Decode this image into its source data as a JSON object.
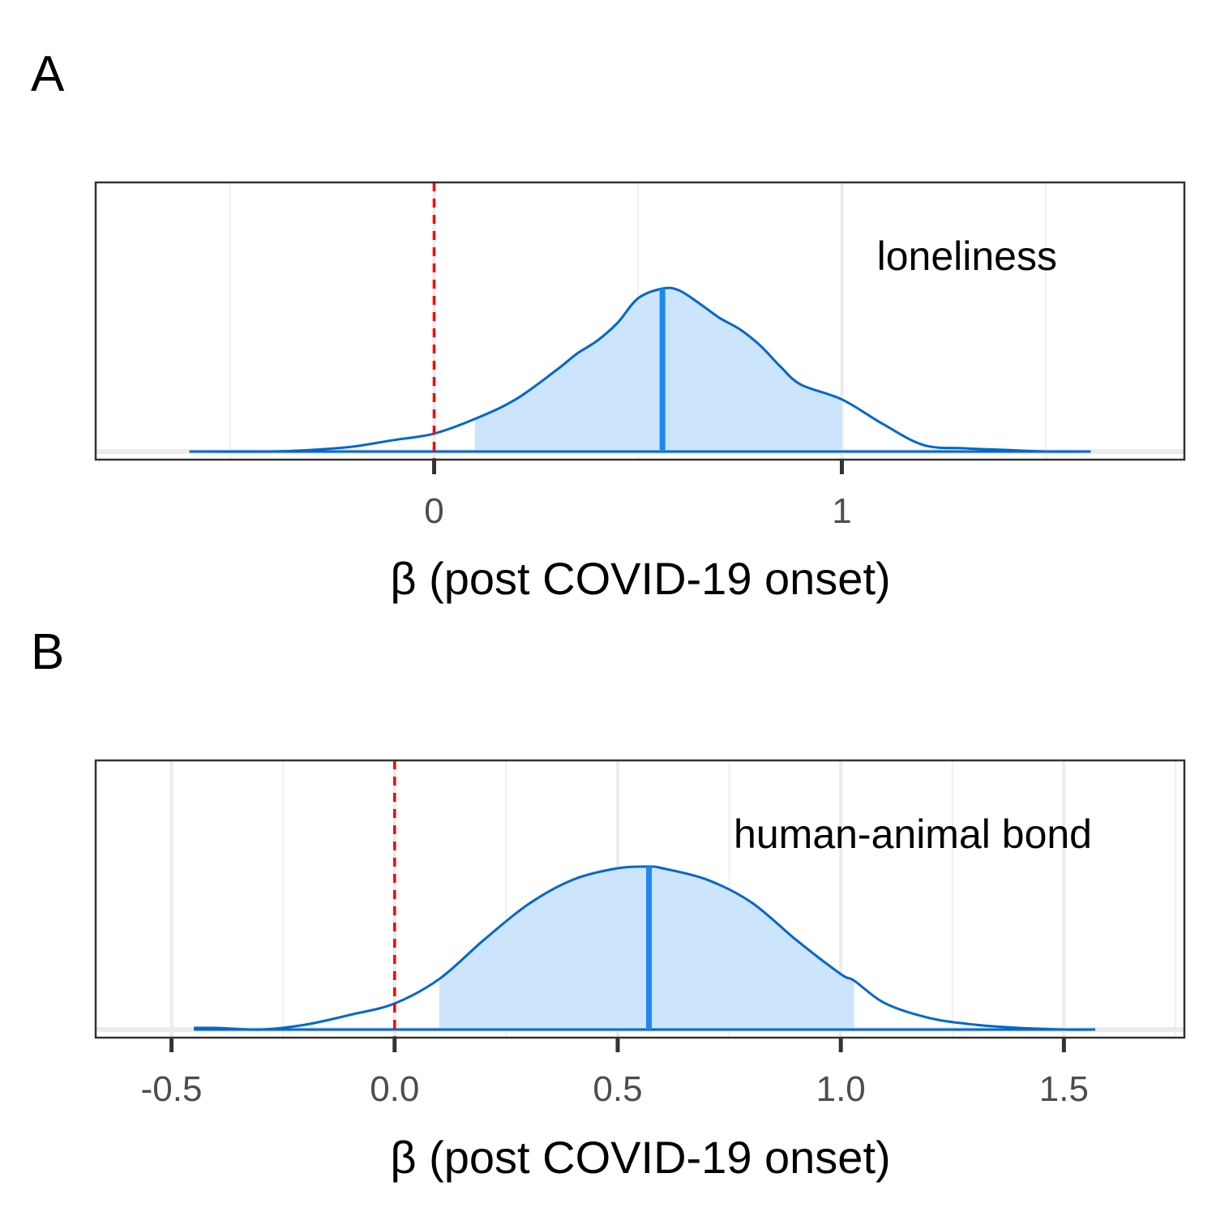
{
  "chart_data": [
    {
      "panel_label": "A",
      "type": "area",
      "plot": "posterior density",
      "xlabel": "β (post COVID-19 onset)",
      "annotation": "loneliness",
      "xlim": [
        -0.83,
        1.84
      ],
      "xticks": [
        0,
        1
      ],
      "xtick_labels": [
        "0",
        "1"
      ],
      "grid": true,
      "density_color": "#0066CC",
      "interval_fill": "#CCE5FC",
      "median_color": "#1E88F0",
      "reference_color": "#FF0000",
      "reference_line": 0,
      "median": 0.56,
      "interval": [
        0.1,
        1.0
      ],
      "density": {
        "x": [
          -0.6,
          -0.4,
          -0.3,
          -0.2,
          -0.1,
          0,
          0.1,
          0.2,
          0.3,
          0.35,
          0.4,
          0.45,
          0.5,
          0.56,
          0.6,
          0.65,
          0.7,
          0.75,
          0.8,
          0.85,
          0.9,
          1.0,
          1.1,
          1.2,
          1.3,
          1.4,
          1.5,
          1.61
        ],
        "y": [
          0.0,
          0.0,
          0.01,
          0.03,
          0.07,
          0.11,
          0.2,
          0.32,
          0.5,
          0.6,
          0.68,
          0.79,
          0.94,
          1.0,
          0.99,
          0.91,
          0.82,
          0.75,
          0.65,
          0.52,
          0.41,
          0.32,
          0.17,
          0.04,
          0.02,
          0.01,
          0.0,
          0.0
        ]
      }
    },
    {
      "panel_label": "B",
      "type": "area",
      "plot": "posterior density",
      "xlabel": "β (post COVID-19 onset)",
      "annotation": "human-animal bond",
      "xlim": [
        -0.67,
        1.77
      ],
      "xticks": [
        -0.5,
        0,
        0.5,
        1,
        1.5
      ],
      "xtick_labels": [
        "-0.5",
        "0.0",
        "0.5",
        "1.0",
        "1.5"
      ],
      "grid": true,
      "density_color": "#0066CC",
      "interval_fill": "#CCE5FC",
      "median_color": "#1E88F0",
      "reference_color": "#FF0000",
      "reference_line": 0,
      "median": 0.57,
      "interval": [
        0.1,
        1.03
      ],
      "density": {
        "x": [
          -0.45,
          -0.4,
          -0.3,
          -0.2,
          -0.1,
          0,
          0.1,
          0.2,
          0.3,
          0.4,
          0.5,
          0.57,
          0.6,
          0.7,
          0.8,
          0.9,
          1.0,
          1.03,
          1.1,
          1.2,
          1.3,
          1.4,
          1.5,
          1.57
        ],
        "y": [
          0.01,
          0.01,
          0.0,
          0.03,
          0.09,
          0.16,
          0.31,
          0.55,
          0.77,
          0.92,
          0.99,
          1.0,
          0.99,
          0.92,
          0.78,
          0.55,
          0.34,
          0.3,
          0.16,
          0.07,
          0.03,
          0.01,
          0.0,
          0.0
        ]
      }
    }
  ]
}
